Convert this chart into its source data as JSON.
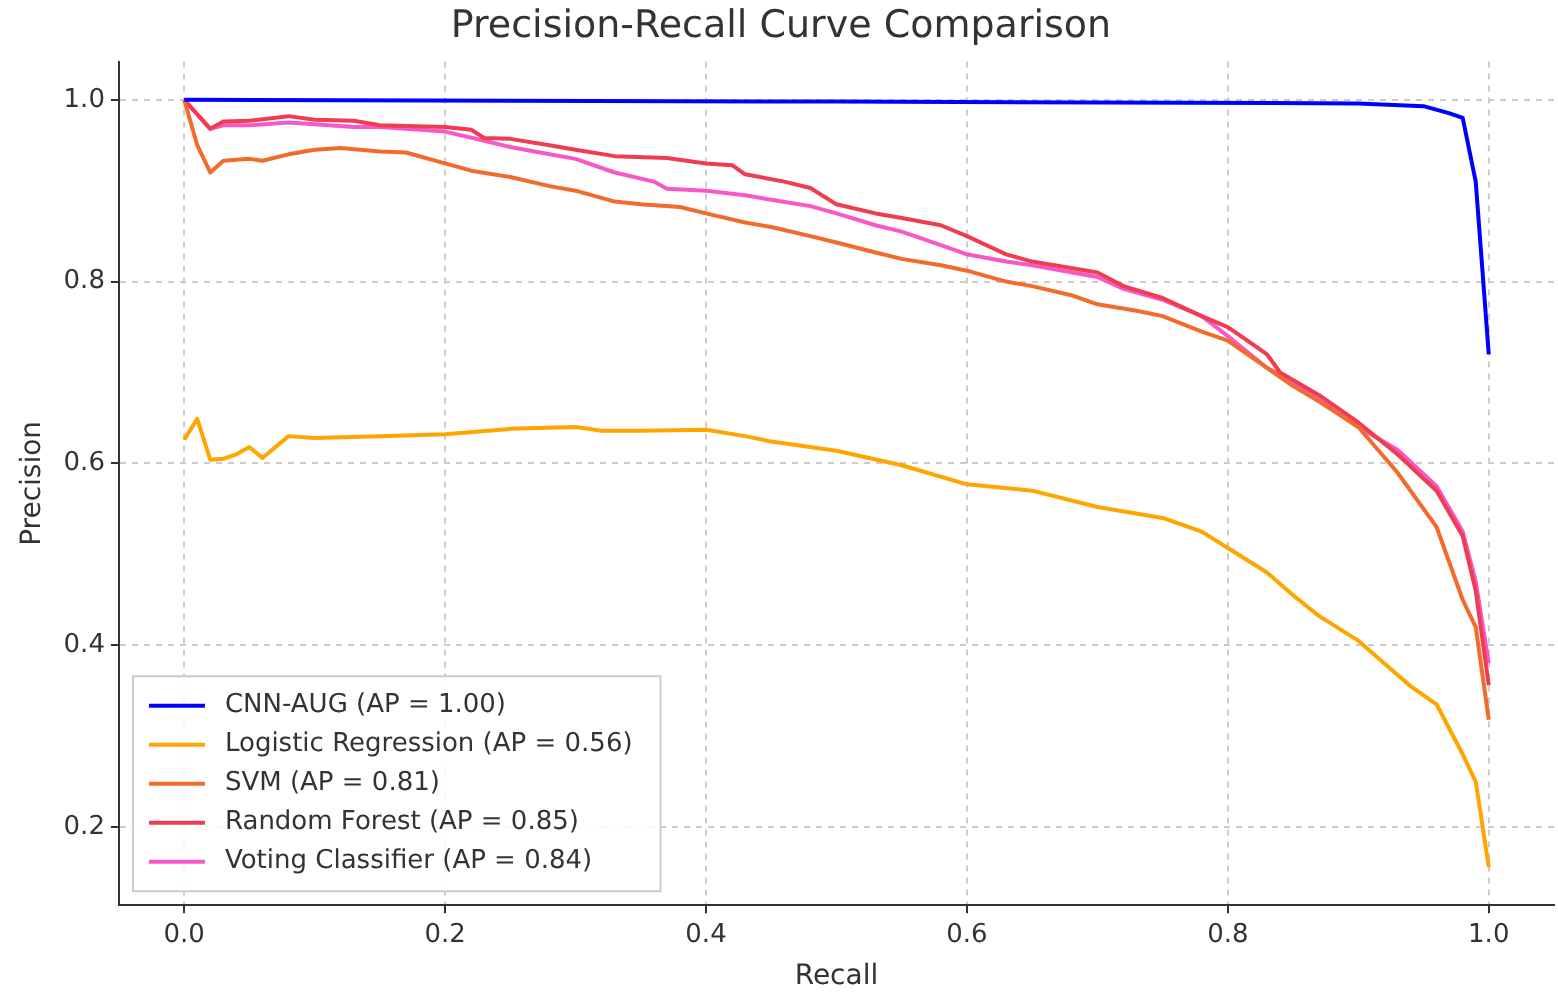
{
  "chart_data": {
    "type": "line",
    "title": "Precision-Recall Curve Comparison",
    "xlabel": "Recall",
    "ylabel": "Precision",
    "xlim": [
      -0.05,
      1.05
    ],
    "ylim": [
      0.114,
      1.042
    ],
    "xticks": [
      {
        "value": 0,
        "label": "0.0"
      },
      0.2,
      0.4,
      0.6,
      0.8,
      {
        "value": 1,
        "label": "1.0"
      }
    ],
    "yticks": [
      0.2,
      0.4,
      0.6,
      0.8,
      {
        "value": 1,
        "label": "1.0"
      }
    ],
    "grid": true,
    "legend": "bottom left",
    "marker": "none",
    "line_style": "solid",
    "series": [
      {
        "name": "CNN-AUG (AP = 1.00)",
        "color": "#0000ff",
        "x": [
          0,
          0.5,
          0.9,
          0.95,
          0.97,
          0.98,
          0.99,
          1.0
        ],
        "values": [
          1.0,
          0.998,
          0.996,
          0.993,
          0.985,
          0.98,
          0.91,
          0.72
        ]
      },
      {
        "name": "Logistic Regression (AP = 0.56)",
        "color": "#ffa500",
        "x": [
          0,
          0.01,
          0.02,
          0.03,
          0.04,
          0.05,
          0.06,
          0.08,
          0.1,
          0.15,
          0.2,
          0.25,
          0.3,
          0.32,
          0.35,
          0.4,
          0.43,
          0.45,
          0.5,
          0.55,
          0.6,
          0.65,
          0.7,
          0.75,
          0.78,
          0.8,
          0.83,
          0.85,
          0.87,
          0.9,
          0.92,
          0.94,
          0.96,
          0.98,
          0.99,
          1.0
        ],
        "values": [
          0.626,
          0.649,
          0.604,
          0.605,
          0.61,
          0.618,
          0.606,
          0.63,
          0.628,
          0.63,
          0.632,
          0.638,
          0.64,
          0.636,
          0.636,
          0.637,
          0.63,
          0.624,
          0.614,
          0.598,
          0.577,
          0.57,
          0.552,
          0.54,
          0.525,
          0.507,
          0.48,
          0.455,
          0.432,
          0.405,
          0.38,
          0.355,
          0.335,
          0.28,
          0.25,
          0.156
        ]
      },
      {
        "name": "SVM (AP = 0.81)",
        "color": "#f46a2a",
        "x": [
          0,
          0.01,
          0.02,
          0.03,
          0.05,
          0.06,
          0.08,
          0.1,
          0.12,
          0.15,
          0.17,
          0.2,
          0.22,
          0.25,
          0.28,
          0.3,
          0.33,
          0.35,
          0.38,
          0.4,
          0.43,
          0.45,
          0.48,
          0.5,
          0.53,
          0.55,
          0.58,
          0.6,
          0.63,
          0.65,
          0.68,
          0.7,
          0.73,
          0.75,
          0.78,
          0.8,
          0.83,
          0.85,
          0.87,
          0.9,
          0.93,
          0.96,
          0.98,
          0.99,
          1.0
        ],
        "values": [
          1.0,
          0.95,
          0.92,
          0.933,
          0.935,
          0.933,
          0.94,
          0.945,
          0.947,
          0.943,
          0.942,
          0.93,
          0.922,
          0.915,
          0.905,
          0.9,
          0.888,
          0.885,
          0.882,
          0.875,
          0.865,
          0.86,
          0.85,
          0.843,
          0.832,
          0.825,
          0.818,
          0.812,
          0.8,
          0.795,
          0.785,
          0.775,
          0.768,
          0.762,
          0.745,
          0.735,
          0.705,
          0.685,
          0.668,
          0.64,
          0.59,
          0.53,
          0.45,
          0.42,
          0.318
        ]
      },
      {
        "name": "Random Forest (AP = 0.85)",
        "color": "#f03c50",
        "x": [
          0,
          0.02,
          0.03,
          0.05,
          0.08,
          0.1,
          0.13,
          0.15,
          0.2,
          0.22,
          0.23,
          0.25,
          0.28,
          0.3,
          0.33,
          0.37,
          0.4,
          0.42,
          0.43,
          0.46,
          0.48,
          0.5,
          0.53,
          0.55,
          0.58,
          0.6,
          0.63,
          0.65,
          0.7,
          0.72,
          0.75,
          0.78,
          0.8,
          0.82,
          0.83,
          0.84,
          0.87,
          0.9,
          0.93,
          0.96,
          0.98,
          0.99,
          1.0
        ],
        "values": [
          1.0,
          0.968,
          0.976,
          0.977,
          0.982,
          0.978,
          0.977,
          0.972,
          0.97,
          0.967,
          0.958,
          0.957,
          0.95,
          0.945,
          0.938,
          0.936,
          0.93,
          0.928,
          0.918,
          0.91,
          0.903,
          0.885,
          0.875,
          0.87,
          0.862,
          0.85,
          0.83,
          0.822,
          0.81,
          0.795,
          0.782,
          0.762,
          0.75,
          0.73,
          0.72,
          0.7,
          0.675,
          0.645,
          0.61,
          0.57,
          0.52,
          0.46,
          0.356
        ]
      },
      {
        "name": "Voting Classifier (AP = 0.84)",
        "color": "#f857c8",
        "x": [
          0,
          0.02,
          0.03,
          0.05,
          0.08,
          0.1,
          0.13,
          0.15,
          0.2,
          0.23,
          0.25,
          0.28,
          0.3,
          0.33,
          0.36,
          0.37,
          0.4,
          0.43,
          0.45,
          0.48,
          0.5,
          0.53,
          0.55,
          0.58,
          0.6,
          0.63,
          0.65,
          0.7,
          0.72,
          0.75,
          0.78,
          0.8,
          0.83,
          0.85,
          0.87,
          0.9,
          0.93,
          0.96,
          0.98,
          0.99,
          1.0
        ],
        "values": [
          1.0,
          0.968,
          0.972,
          0.972,
          0.975,
          0.973,
          0.97,
          0.97,
          0.965,
          0.955,
          0.948,
          0.94,
          0.935,
          0.92,
          0.91,
          0.902,
          0.9,
          0.895,
          0.89,
          0.883,
          0.875,
          0.862,
          0.855,
          0.84,
          0.83,
          0.822,
          0.818,
          0.805,
          0.792,
          0.78,
          0.762,
          0.74,
          0.705,
          0.69,
          0.67,
          0.64,
          0.615,
          0.575,
          0.525,
          0.47,
          0.38
        ]
      }
    ]
  }
}
